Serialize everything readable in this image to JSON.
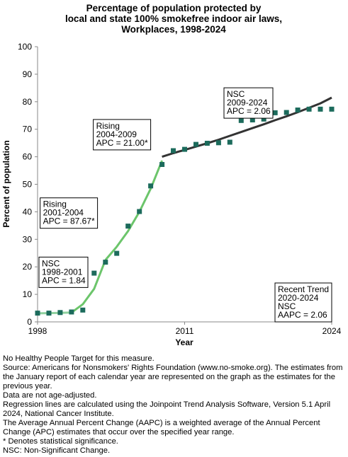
{
  "chart_data": {
    "type": "line",
    "title_lines": [
      "Percentage of population protected by",
      "local and state 100% smokefree indoor air laws,",
      "Workplaces,  1998-2024"
    ],
    "xlabel": "Year",
    "ylabel": "Percent of population",
    "xlim": [
      1998,
      2024
    ],
    "ylim": [
      0,
      100
    ],
    "x_ticks": [
      "1998",
      "2011",
      "2024"
    ],
    "y_ticks": [
      "0",
      "10",
      "20",
      "30",
      "40",
      "50",
      "60",
      "70",
      "80",
      "90",
      "100"
    ],
    "grid": false,
    "observed": {
      "x": [
        1998,
        1999,
        2000,
        2001,
        2002,
        2003,
        2004,
        2005,
        2006,
        2007,
        2008,
        2009,
        2010,
        2011,
        2012,
        2013,
        2014,
        2015,
        2016,
        2017,
        2018,
        2019,
        2020,
        2021,
        2022,
        2023,
        2024
      ],
      "values": [
        3.2,
        3.2,
        3.4,
        3.6,
        4.3,
        17.7,
        21.7,
        24.9,
        34.8,
        40.1,
        49.4,
        57.2,
        62.2,
        62.7,
        64.5,
        64.9,
        65.1,
        65.3,
        73.2,
        73.4,
        73.7,
        76.0,
        76.1,
        77.0,
        77.3,
        77.3,
        77.3
      ]
    },
    "trend_segments": [
      {
        "x": [
          1998,
          1999,
          2000,
          2001
        ],
        "values": [
          3.1,
          3.2,
          3.3,
          3.4
        ],
        "color": "#8fd19e"
      },
      {
        "x": [
          2001,
          2002,
          2003,
          2004
        ],
        "values": [
          3.4,
          6.4,
          12.0,
          22.5
        ],
        "color": "#6cc56b"
      },
      {
        "x": [
          2004,
          2005,
          2006,
          2007,
          2008,
          2009
        ],
        "values": [
          22.5,
          27.3,
          33.0,
          40.0,
          48.4,
          58.6
        ],
        "color": "#6cc56b"
      },
      {
        "x": [
          2009,
          2010,
          2011,
          2012,
          2013,
          2014,
          2015,
          2016,
          2017,
          2018,
          2019,
          2020,
          2021,
          2022,
          2023,
          2024
        ],
        "values": [
          60.0,
          61.3,
          62.5,
          63.7,
          64.9,
          66.2,
          67.6,
          69.0,
          70.4,
          71.8,
          73.3,
          74.7,
          76.2,
          77.8,
          79.4,
          81.5
        ],
        "color": "#333333"
      }
    ],
    "colors": {
      "marker": "#1c6b5c",
      "line_nsc": "#333333",
      "line_rising": "#6cc56b"
    },
    "annotations": [
      {
        "lines": [
          "NSC",
          "1998-2001",
          "APC =  1.84"
        ],
        "x": 2000.9,
        "y": 12.5
      },
      {
        "lines": [
          "Rising",
          "2001-2004",
          "APC = 87.67*"
        ],
        "x": 2003.3,
        "y": 34.0
      },
      {
        "lines": [
          "Rising",
          "2004-2009",
          "APC = 21.00*"
        ],
        "x": 2008.0,
        "y": 62.5
      },
      {
        "lines": [
          "NSC",
          "2009-2024",
          "APC =  2.06"
        ],
        "x": 2018.8,
        "y": 74.0
      },
      {
        "lines": [
          "Recent Trend",
          "2020-2024",
          "NSC",
          "AAPC =  2.06"
        ],
        "x": 2024,
        "y": 0
      }
    ]
  },
  "footnotes": [
    "No Healthy People Target for this measure.",
    "Source: Americans for Nonsmokers' Rights Foundation (www.no-smoke.org). The estimates from the January report of each calendar year are represented on the graph as the estimates for the previous year.",
    "Data are not age-adjusted.",
    "Regression lines are calculated using the Joinpoint Trend Analysis Software, Version 5.1 April 2024, National Cancer Institute.",
    "The Average Annual Percent Change (AAPC) is a weighted average of the Annual Percent Change (APC) estimates that occur over the specified year range.",
    "* Denotes statistical significance.",
    "NSC: Non-Significant Change."
  ]
}
